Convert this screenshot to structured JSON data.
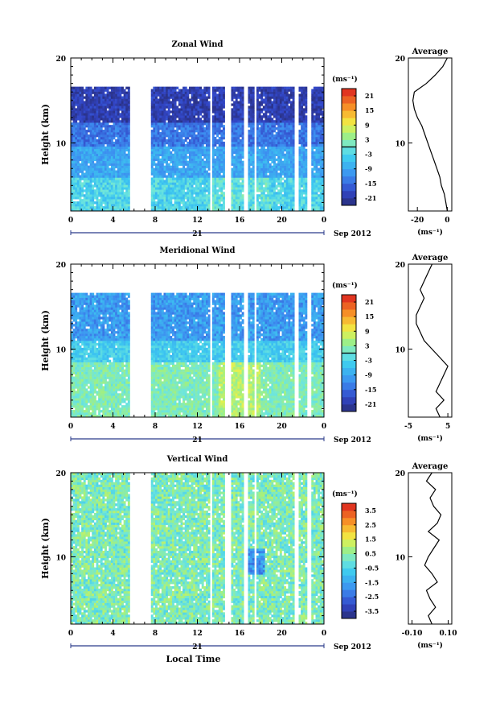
{
  "chart_data": [
    {
      "type": "heatmap",
      "title": "Zonal Wind",
      "ylabel": "Height (km)",
      "xlabel": "",
      "ylim": [
        2,
        20
      ],
      "yticks": [
        "10",
        "20"
      ],
      "xticks": [
        "0",
        "4",
        "8",
        "12",
        "16",
        "20",
        "0"
      ],
      "day_label": "21",
      "date_label": "Sep 2012",
      "colorbar": {
        "unit": "(ms⁻¹)",
        "ticks": [
          "21",
          "15",
          "9",
          "3",
          "-3",
          "-9",
          "-15",
          "-21"
        ],
        "range": [
          -24,
          24
        ],
        "contour_level": 0
      },
      "profile": {
        "title": "Average",
        "xlabel": "(ms⁻¹)",
        "xticks": [
          "-20",
          "0"
        ],
        "xlim": [
          -26,
          3
        ],
        "yticks": [
          "10",
          "20"
        ],
        "heights": [
          2,
          3,
          4,
          5,
          6,
          7,
          8,
          9,
          10,
          11,
          12,
          13,
          14,
          15,
          16,
          17,
          18,
          19,
          20
        ],
        "values": [
          0,
          -1,
          -2,
          -4,
          -5,
          -7,
          -9,
          -11,
          -13,
          -15,
          -17,
          -20,
          -22,
          -23,
          -22,
          -14,
          -8,
          -3,
          0
        ]
      }
    },
    {
      "type": "heatmap",
      "title": "Meridional Wind",
      "ylabel": "Height (km)",
      "xlabel": "",
      "ylim": [
        2,
        20
      ],
      "yticks": [
        "10",
        "20"
      ],
      "xticks": [
        "0",
        "4",
        "8",
        "12",
        "16",
        "20",
        "0"
      ],
      "day_label": "21",
      "date_label": "Sep 2012",
      "colorbar": {
        "unit": "(ms⁻¹)",
        "ticks": [
          "21",
          "15",
          "9",
          "3",
          "-3",
          "-9",
          "-15",
          "-21"
        ],
        "range": [
          -24,
          24
        ],
        "contour_level": 0
      },
      "profile": {
        "title": "Average",
        "xlabel": "(ms⁻¹)",
        "xticks": [
          "-5",
          "5"
        ],
        "xlim": [
          -5,
          6
        ],
        "yticks": [
          "10",
          "20"
        ],
        "heights": [
          2,
          3,
          4,
          5,
          6,
          7,
          8,
          9,
          10,
          11,
          12,
          13,
          14,
          15,
          16,
          17,
          18,
          19,
          20
        ],
        "values": [
          3,
          2,
          4,
          2,
          3,
          4,
          5,
          3,
          1,
          -1,
          -2,
          -3,
          -3,
          -2,
          -1,
          -2,
          -1,
          0,
          1
        ]
      }
    },
    {
      "type": "heatmap",
      "title": "Vertical Wind",
      "ylabel": "Height (km)",
      "xlabel": "Local Time",
      "ylim": [
        2,
        20
      ],
      "yticks": [
        "10",
        "20"
      ],
      "xticks": [
        "0",
        "4",
        "8",
        "12",
        "16",
        "20",
        "0"
      ],
      "day_label": "21",
      "date_label": "Sep 2012",
      "colorbar": {
        "unit": "(ms⁻¹)",
        "ticks": [
          "3.5",
          "2.5",
          "1.5",
          "0.5",
          "-0.5",
          "-1.5",
          "-2.5",
          "-3.5"
        ],
        "range": [
          -4,
          4
        ],
        "contour_level": null
      },
      "profile": {
        "title": "Average",
        "xlabel": "(ms⁻¹)",
        "xticks": [
          "-0.10",
          "0.10"
        ],
        "xlim": [
          -0.12,
          0.12
        ],
        "yticks": [
          "10",
          "20"
        ],
        "heights": [
          2,
          3,
          4,
          5,
          6,
          7,
          8,
          9,
          10,
          11,
          12,
          13,
          14,
          15,
          16,
          17,
          18,
          19,
          20
        ],
        "values": [
          0.01,
          -0.01,
          0.03,
          0.0,
          -0.02,
          0.04,
          0.01,
          -0.03,
          -0.01,
          0.02,
          0.05,
          -0.01,
          0.04,
          0.06,
          0.02,
          0.0,
          0.03,
          -0.02,
          0.01
        ]
      }
    }
  ]
}
